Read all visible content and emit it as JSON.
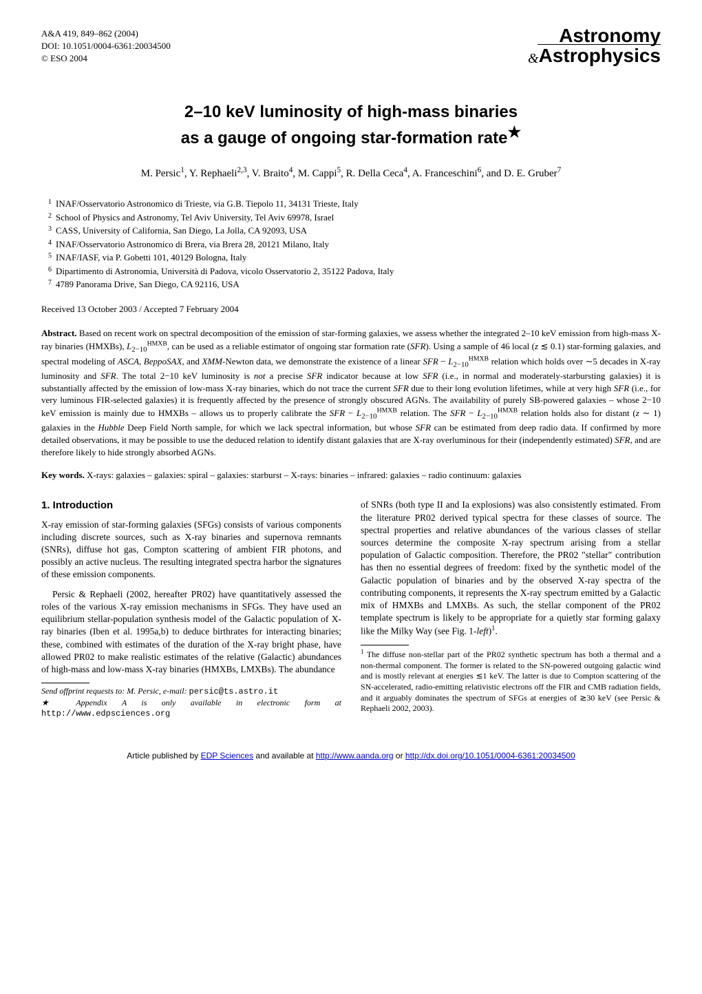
{
  "journal": {
    "ref": "A&A 419, 849–862 (2004)",
    "doi": "DOI: 10.1051/0004-6361:20034500",
    "copyright": "© ESO 2004",
    "logo_top": "Astronomy",
    "logo_amp": "&",
    "logo_bottom": "Astrophysics"
  },
  "title_line1": "2–10 keV luminosity of high-mass binaries",
  "title_line2": "as a gauge of ongoing star-formation rate",
  "star": "★",
  "authors_html": "M. Persic<sup>1</sup>, Y. Rephaeli<sup>2,3</sup>, V. Braito<sup>4</sup>, M. Cappi<sup>5</sup>, R. Della Ceca<sup>4</sup>, A. Franceschini<sup>6</sup>, and D. E. Gruber<sup>7</sup>",
  "affiliations": [
    "INAF/Osservatorio Astronomico di Trieste, via G.B. Tiepolo 11, 34131 Trieste, Italy",
    "School of Physics and Astronomy, Tel Aviv University, Tel Aviv 69978, Israel",
    "CASS, University of California, San Diego, La Jolla, CA 92093, USA",
    "INAF/Osservatorio Astronomico di Brera, via Brera 28, 20121 Milano, Italy",
    "INAF/IASF, via P. Gobetti 101, 40129 Bologna, Italy",
    "Dipartimento di Astronomia, Università di Padova, vicolo Osservatorio 2, 35122 Padova, Italy",
    "4789 Panorama Drive, San Diego, CA 92116, USA"
  ],
  "dates": "Received 13 October 2003 / Accepted 7 February 2004",
  "abstract_label": "Abstract.",
  "abstract_html": "Based on recent work on spectral decomposition of the emission of star-forming galaxies, we assess whether the integrated 2–10 keV emission from high-mass X-ray binaries (HMXBs), <span class=\"ital\">L</span><sub>2−10</sub><sup>HMXB</sup>, can be used as a reliable estimator of ongoing star formation rate (<span class=\"ital\">SFR</span>). Using a sample of 46 local (<span class=\"ital\">z</span> ≲ 0.1) star-forming galaxies, and spectral modeling of <span class=\"ital\">ASCA</span>, <span class=\"ital\">BeppoSAX</span>, and <span class=\"ital\">XMM</span>-Newton data, we demonstrate the existence of a linear <span class=\"ital\">SFR</span> − <span class=\"ital\">L</span><sub>2−10</sub><sup>HMXB</sup> relation which holds over ∼5 decades in X-ray luminosity and <span class=\"ital\">SFR</span>. The total 2−10 keV luminosity is <span class=\"ital\">not</span> a precise <span class=\"ital\">SFR</span> indicator because at low <span class=\"ital\">SFR</span> (i.e., in normal and moderately-starbursting galaxies) it is substantially affected by the emission of low-mass X-ray binaries, which do not trace the current <span class=\"ital\">SFR</span> due to their long evolution lifetimes, while at very high <span class=\"ital\">SFR</span> (i.e., for very luminous FIR-selected galaxies) it is frequently affected by the presence of strongly obscured AGNs. The availability of purely SB-powered galaxies – whose 2−10 keV emission is mainly due to HMXBs – allows us to properly calibrate the <span class=\"ital\">SFR</span> − <span class=\"ital\">L</span><sub>2−10</sub><sup>HMXB</sup> relation. The <span class=\"ital\">SFR</span> − <span class=\"ital\">L</span><sub>2−10</sub><sup>HMXB</sup> relation holds also for distant (<span class=\"ital\">z</span> ∼ 1) galaxies in the <span class=\"ital\">Hubble</span> Deep Field North sample, for which we lack spectral information, but whose <span class=\"ital\">SFR</span> can be estimated from deep radio data. If confirmed by more detailed observations, it may be possible to use the deduced relation to identify distant galaxies that are X-ray overluminous for their (independently estimated) <span class=\"ital\">SFR</span>, and are therefore likely to hide strongly absorbed AGNs.",
  "keywords_label": "Key words.",
  "keywords": "X-rays: galaxies – galaxies: spiral – galaxies: starburst – X-rays: binaries – infrared: galaxies – radio continuum: galaxies",
  "section1_heading": "1. Introduction",
  "intro_p1": "X-ray emission of star-forming galaxies (SFGs) consists of various components including discrete sources, such as X-ray binaries and supernova remnants (SNRs), diffuse hot gas, Compton scattering of ambient FIR photons, and possibly an active nucleus. The resulting integrated spectra harbor the signatures of these emission components.",
  "intro_p2": "Persic & Rephaeli (2002, hereafter PR02) have quantitatively assessed the roles of the various X-ray emission mechanisms in SFGs. They have used an equilibrium stellar-population synthesis model of the Galactic population of X-ray binaries (Iben et al. 1995a,b) to deduce birthrates for interacting binaries; these, combined with estimates of the duration of the X-ray bright phase, have allowed PR02 to make realistic estimates of the relative (Galactic) abundances of high-mass and low-mass X-ray binaries (HMXBs, LMXBs). The abundance",
  "intro_right_html": "of SNRs (both type II and Ia explosions) was also consistently estimated. From the literature PR02 derived typical spectra for these classes of source. The spectral properties and relative abundances of the various classes of stellar sources determine the composite X-ray spectrum arising from a stellar population of Galactic composition. Therefore, the PR02 \"stellar\" contribution has then no essential degrees of freedom: fixed by the synthetic model of the Galactic population of binaries and by the observed X-ray spectra of the contributing components, it represents the X-ray spectrum emitted by a Galactic mix of HMXBs and LMXBs. As such, the stellar component of the PR02 template spectrum is likely to be appropriate for a quietly star forming galaxy like the Milky Way (see Fig. 1-<span class=\"ital\">left</span>)<sup>1</sup>.",
  "footnote_left_html": "<span class=\"ital\">Send offprint requests to</span>: M. Persic, e-mail: <span class=\"mono\">persic@ts.astro.it</span><br>★ Appendix A is only available in electronic form at <span class=\"mono\">http://www.edpsciences.org</span>",
  "footnote_right_html": "<sup>1</sup> The diffuse non-stellar part of the PR02 synthetic spectrum has both a thermal and a non-thermal component. The former is related to the SN-powered outgoing galactic wind and is mostly relevant at energies ≲1 keV. The latter is due to Compton scattering of the SN-accelerated, radio-emitting relativistic electrons off the FIR and CMB radiation fields, and it arguably dominates the spectrum of SFGs at energies of ≳30 keV (see Persic & Rephaeli 2002, 2003).",
  "bottom_bar": {
    "prefix": "Article published by ",
    "link1_text": "EDP Sciences",
    "link1_href": "http://www.edpsciences.org",
    "mid": " and available at ",
    "link2_text": "http://www.aanda.org",
    "link2_href": "http://www.aanda.org",
    "or": " or ",
    "link3_text": "http://dx.doi.org/10.1051/0004-6361:20034500",
    "link3_href": "http://dx.doi.org/10.1051/0004-6361:20034500"
  }
}
